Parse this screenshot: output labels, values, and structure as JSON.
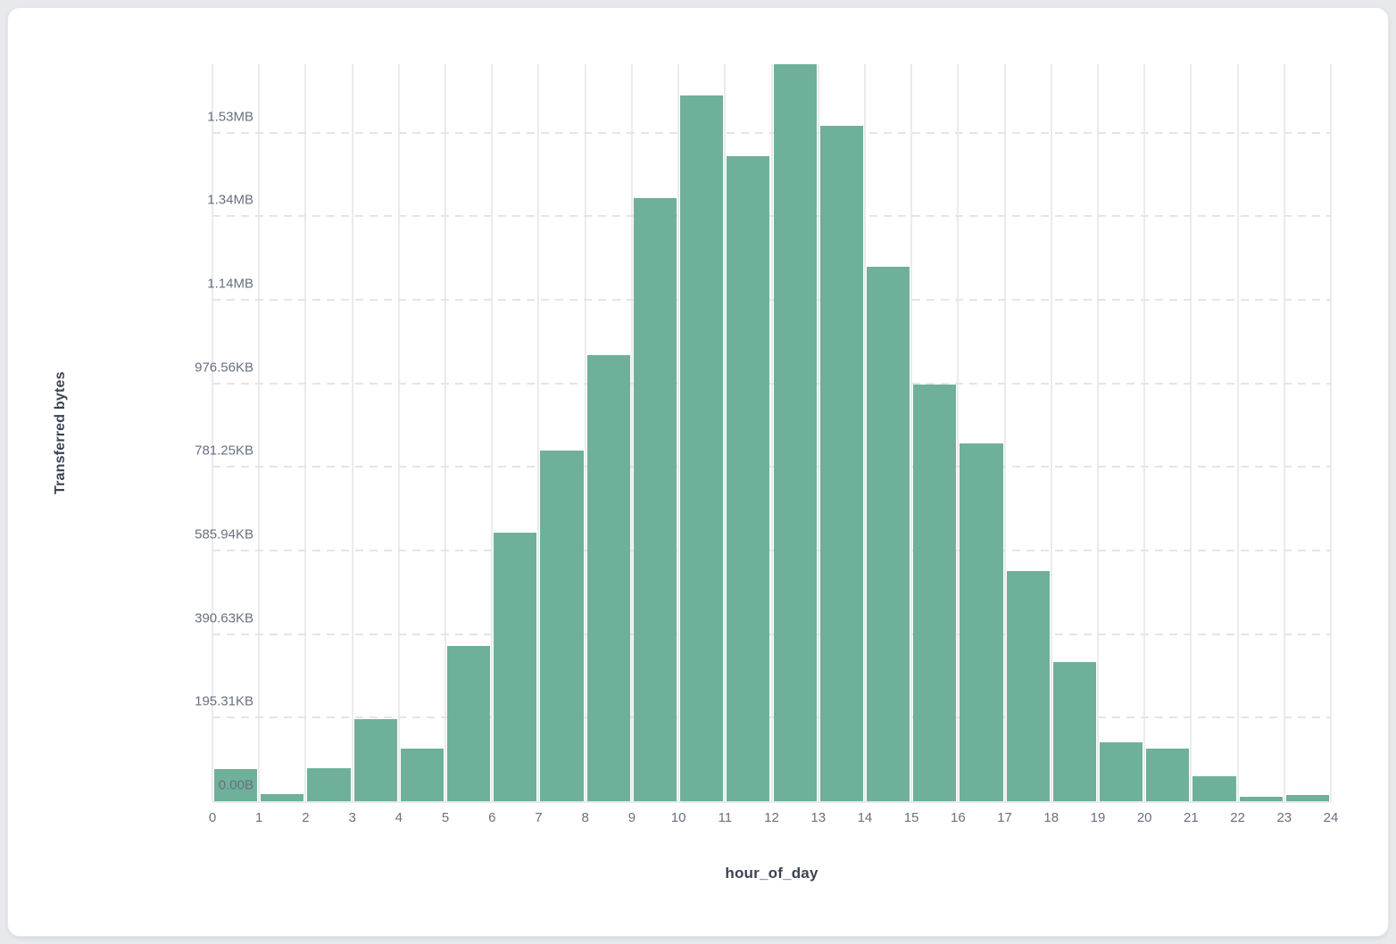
{
  "page": {
    "background_color": "#e7e9ec",
    "card_background_color": "#ffffff",
    "card_border_color": "#e6e8eb"
  },
  "chart_data": {
    "type": "bar",
    "title": "",
    "xlabel": "hour_of_day",
    "ylabel": "Transferred bytes",
    "categories": [
      0,
      1,
      2,
      3,
      4,
      5,
      6,
      7,
      8,
      9,
      10,
      11,
      12,
      13,
      14,
      15,
      16,
      17,
      18,
      19,
      20,
      21,
      22,
      23
    ],
    "values": [
      76000,
      18000,
      80000,
      196000,
      127000,
      371000,
      643000,
      840000,
      1068000,
      1443000,
      1689000,
      1543000,
      1764000,
      1616000,
      1280000,
      998000,
      857000,
      551000,
      333000,
      142000,
      127000,
      59000,
      10000,
      14000
    ],
    "values_unit": "bytes",
    "ylim": [
      0,
      1764000
    ],
    "y_ticks": [
      {
        "value": 0,
        "label": "0.00B"
      },
      {
        "value": 200000,
        "label": "195.31KB"
      },
      {
        "value": 400000,
        "label": "390.63KB"
      },
      {
        "value": 600000,
        "label": "585.94KB"
      },
      {
        "value": 800000,
        "label": "781.25KB"
      },
      {
        "value": 1000000,
        "label": "976.56KB"
      },
      {
        "value": 1200000,
        "label": "1.14MB"
      },
      {
        "value": 1400000,
        "label": "1.34MB"
      },
      {
        "value": 1600000,
        "label": "1.53MB"
      }
    ],
    "x_ticks": [
      "0",
      "1",
      "2",
      "3",
      "4",
      "5",
      "6",
      "7",
      "8",
      "9",
      "10",
      "11",
      "12",
      "13",
      "14",
      "15",
      "16",
      "17",
      "18",
      "19",
      "20",
      "21",
      "22",
      "23",
      "24"
    ],
    "bar_color": "#6fb09a",
    "grid": {
      "vertical": "solid",
      "horizontal": "dashed",
      "color": "#e9ebee"
    },
    "legend": "none"
  }
}
